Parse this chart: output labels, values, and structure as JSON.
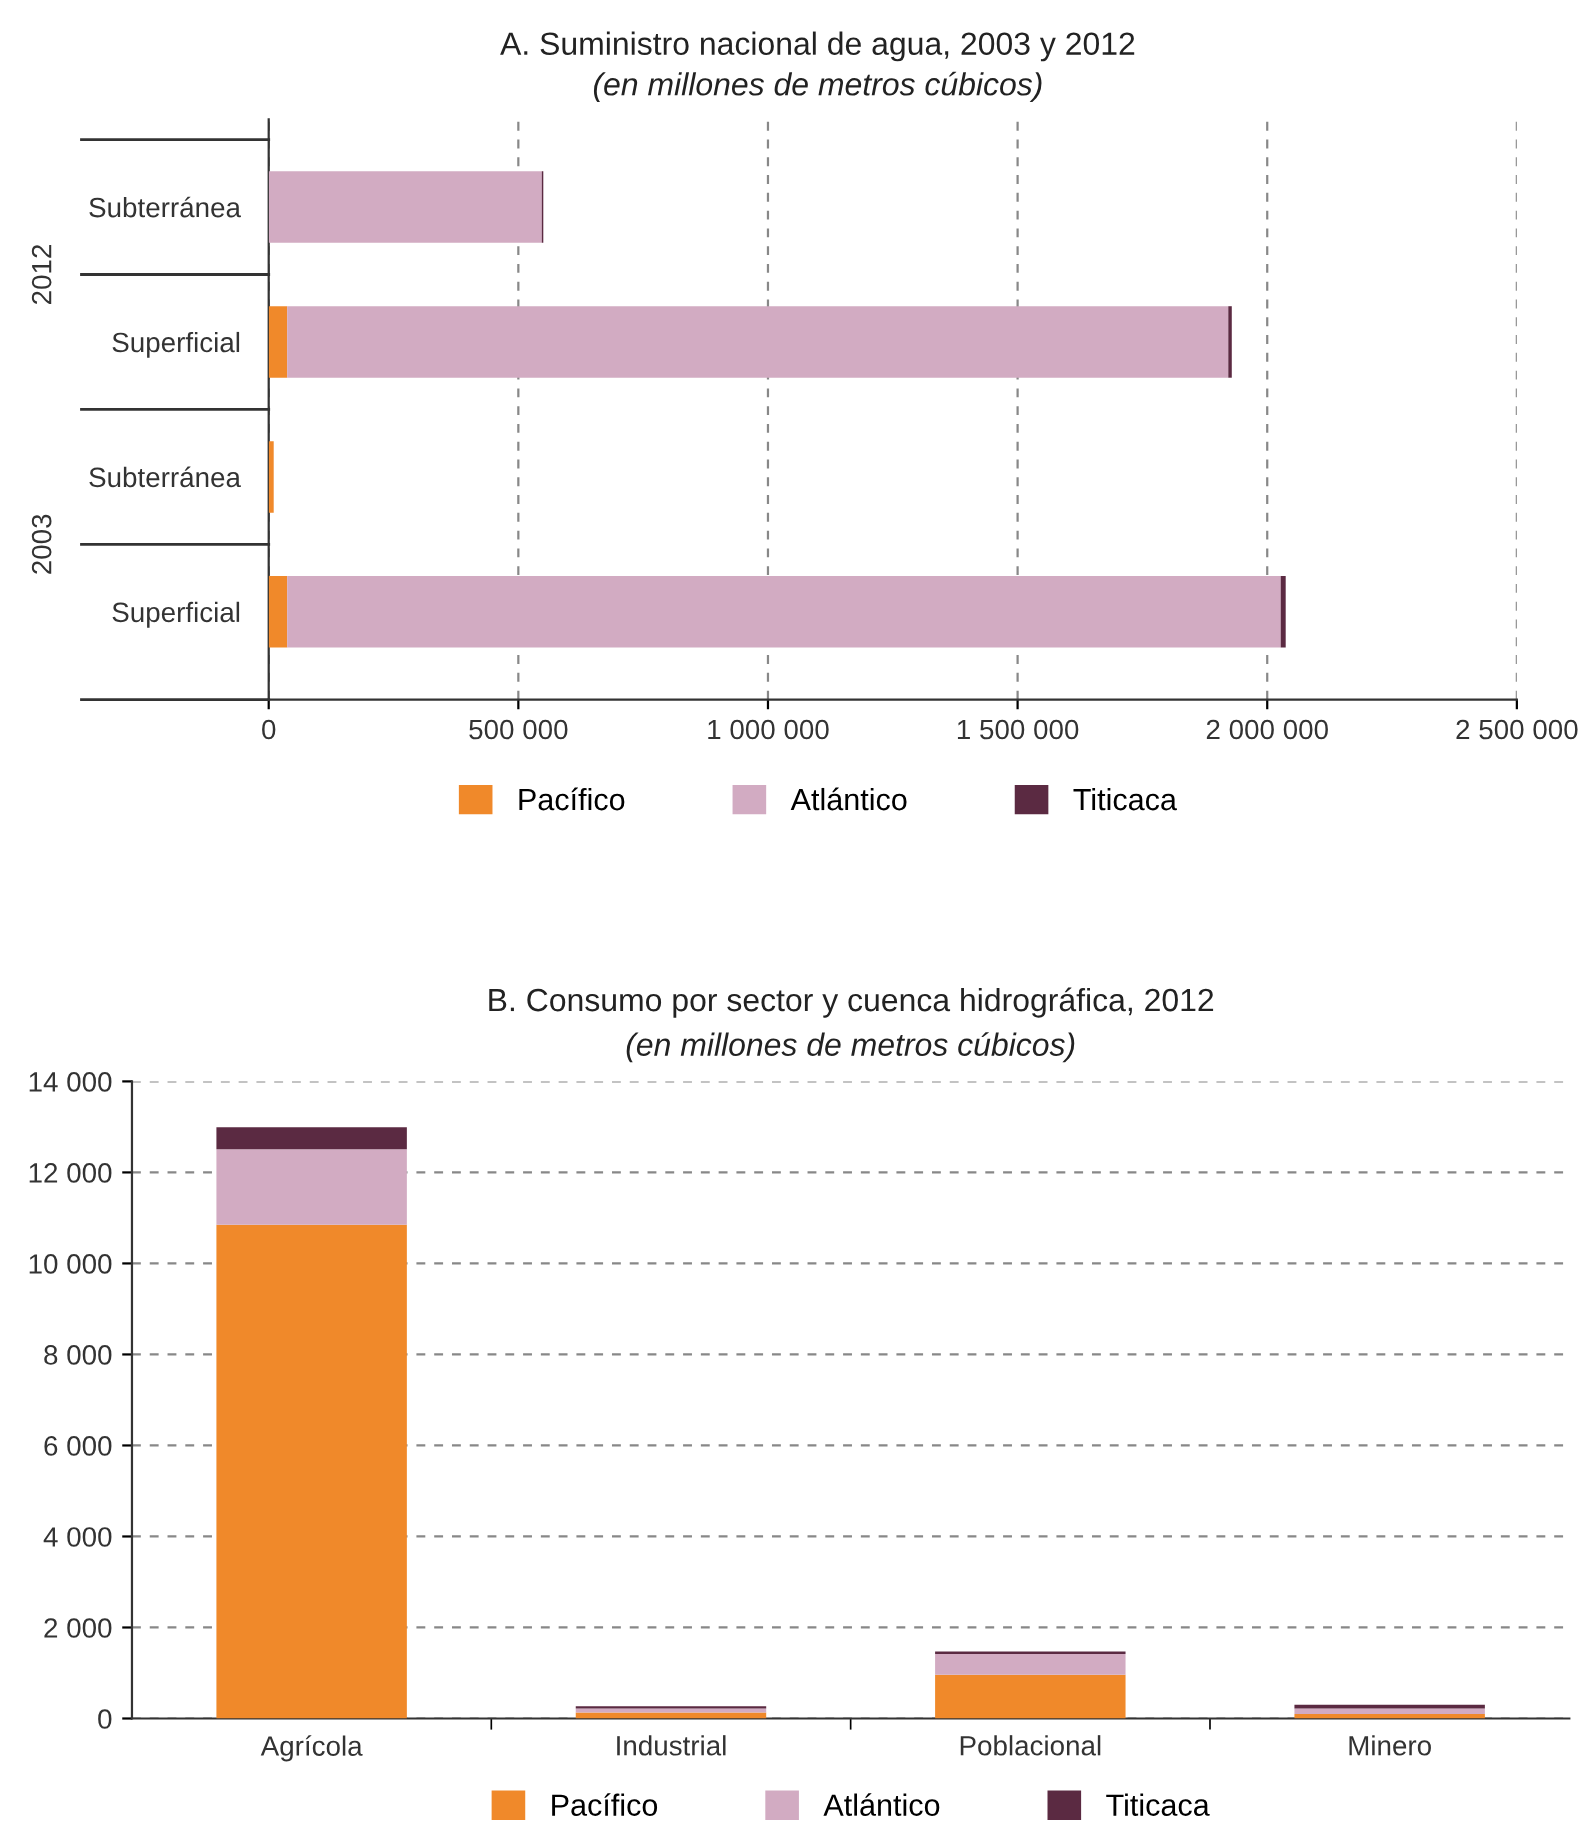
{
  "chart_data": [
    {
      "type": "bar",
      "orientation": "horizontal",
      "stacked": true,
      "title": "A. Suministro nacional de agua, 2003 y 2012",
      "subtitle": "(en millones de metros cúbicos)",
      "categories": [
        "Subterránea",
        "Superficial",
        "Subterránea",
        "Superficial"
      ],
      "series": [
        {
          "name": "Pacífico",
          "color": "#f0892a",
          "values": [
            0,
            37000,
            10000,
            37000
          ]
        },
        {
          "name": "Atlántico",
          "color": "#d2abc2",
          "values": [
            547000,
            1885000,
            0,
            1990000
          ]
        },
        {
          "name": "Titicaca",
          "color": "#5b2a42",
          "values": [
            3000,
            7000,
            0,
            10000
          ]
        }
      ],
      "annotations": [
        "2012",
        "2003"
      ],
      "xlim": [
        0,
        2500000
      ],
      "xticks": [
        {
          "value": 0,
          "label": "0"
        },
        {
          "value": 500000,
          "label": "500 000"
        },
        {
          "value": 1000000,
          "label": "1 000 000"
        },
        {
          "value": 1500000,
          "label": "1 500 000"
        },
        {
          "value": 2000000,
          "label": "2 000 000"
        },
        {
          "value": 2500000,
          "label": "2 500 000"
        }
      ],
      "grid": "x",
      "legend": "bottom"
    },
    {
      "type": "bar",
      "stacked": true,
      "title": "B. Consumo por sector y cuenca hidrográfica, 2012",
      "subtitle": "(en millones de metros cúbicos)",
      "categories": [
        "Agrícola",
        "Industrial",
        "Poblacional",
        "Minero"
      ],
      "series": [
        {
          "name": "Pacífico",
          "color": "#f0892a",
          "values": [
            10850,
            130,
            960,
            100
          ]
        },
        {
          "name": "Atlántico",
          "color": "#d2abc2",
          "values": [
            1660,
            90,
            460,
            120
          ]
        },
        {
          "name": "Titicaca",
          "color": "#5b2a42",
          "values": [
            480,
            50,
            50,
            80
          ]
        }
      ],
      "ylim": [
        0,
        14000
      ],
      "yticks": [
        {
          "value": 0,
          "label": "0"
        },
        {
          "value": 2000,
          "label": "2 000"
        },
        {
          "value": 4000,
          "label": "4 000"
        },
        {
          "value": 6000,
          "label": "6 000"
        },
        {
          "value": 8000,
          "label": "8 000"
        },
        {
          "value": 10000,
          "label": "10 000"
        },
        {
          "value": 12000,
          "label": "12 000"
        },
        {
          "value": 14000,
          "label": "14 000"
        }
      ],
      "grid": "y",
      "legend": "bottom"
    }
  ]
}
